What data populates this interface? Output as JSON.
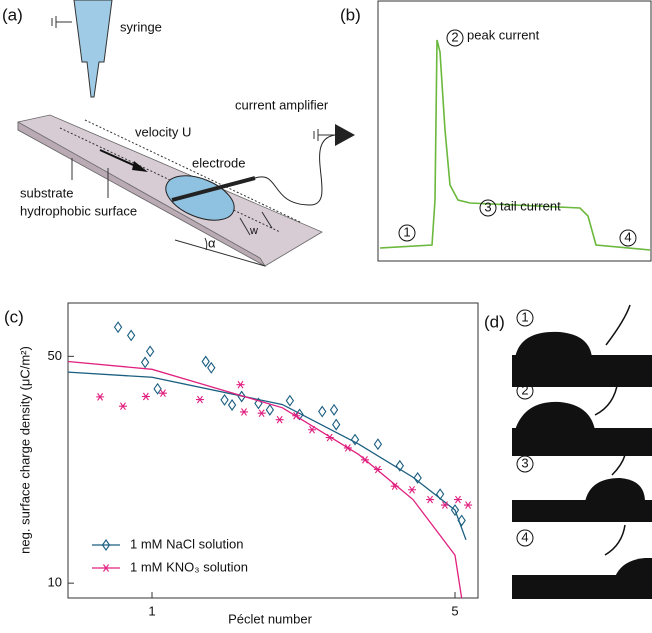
{
  "panel_a": {
    "label": "(a)",
    "syringe": "syringe",
    "current_amplifier": "current amplifier",
    "velocity": "velocity U",
    "electrode": "electrode",
    "substrate": "substrate",
    "surface": "hydrophobic surface",
    "width": "w",
    "angle": "α"
  },
  "panel_b": {
    "label": "(b)",
    "annotations": [
      {
        "number": "1"
      },
      {
        "number": "2",
        "text": "peak current"
      },
      {
        "number": "3",
        "text": "tail current"
      },
      {
        "number": "4"
      }
    ]
  },
  "chart_data": {
    "type": "scatter",
    "label": "(c)",
    "xlabel": "Péclet number",
    "ylabel": "neg. surface charge density (μC/m²)",
    "xscale": "log",
    "yscale": "log",
    "xlim": [
      0.64,
      5.65
    ],
    "ylim": [
      9,
      73
    ],
    "xticks": [
      1,
      5
    ],
    "yticks": [
      10,
      50
    ],
    "legend": "lower left",
    "series": [
      {
        "name": "1 mM NaCl solution",
        "color": "#1a5e80",
        "marker": "diamond",
        "x": [
          0.835,
          0.895,
          0.964,
          0.99,
          1.03,
          1.33,
          1.37,
          1.47,
          1.53,
          1.61,
          1.76,
          1.87,
          2.08,
          2.19,
          2.47,
          2.63,
          2.66,
          2.94,
          3.32,
          3.73,
          4.1,
          4.62,
          5.0,
          5.18
        ],
        "values": [
          61.5,
          58,
          47.9,
          51.8,
          39.7,
          48.2,
          46.1,
          36.7,
          35.4,
          37.6,
          35.8,
          34.2,
          36.5,
          33.1,
          33.8,
          34.2,
          30.8,
          27.7,
          26.8,
          23,
          21.1,
          18.8,
          16.8,
          15.6
        ],
        "fit": {
          "x": [
            0.64,
            1,
            2,
            3,
            4,
            5,
            5.3
          ],
          "values": [
            44.7,
            43.1,
            35.5,
            26.8,
            21.2,
            16.8,
            13.6
          ]
        }
      },
      {
        "name": "1 mM KNO₃ solution",
        "color": "#e0207f",
        "marker": "star",
        "x": [
          0.759,
          0.857,
          0.968,
          1.06,
          1.29,
          1.6,
          1.63,
          1.79,
          1.97,
          2.15,
          2.34,
          2.57,
          2.83,
          3.1,
          3.32,
          3.63,
          3.98,
          4.38,
          4.74,
          5.08,
          5.36
        ],
        "values": [
          37.5,
          35.1,
          37.6,
          38.5,
          36.8,
          40.9,
          33.7,
          33.4,
          31.9,
          32.8,
          29.7,
          28.1,
          26.1,
          24,
          22.4,
          19.9,
          19.4,
          18.1,
          17.4,
          18.1,
          17.4
        ],
        "fit": {
          "x": [
            0.64,
            1,
            2,
            3,
            4,
            5,
            5.18
          ],
          "values": [
            48.2,
            45.6,
            34.7,
            24.9,
            18.1,
            12.2,
            9.0
          ]
        }
      }
    ]
  },
  "panel_d": {
    "label": "(d)",
    "frames": [
      "1",
      "2",
      "3",
      "4"
    ]
  }
}
